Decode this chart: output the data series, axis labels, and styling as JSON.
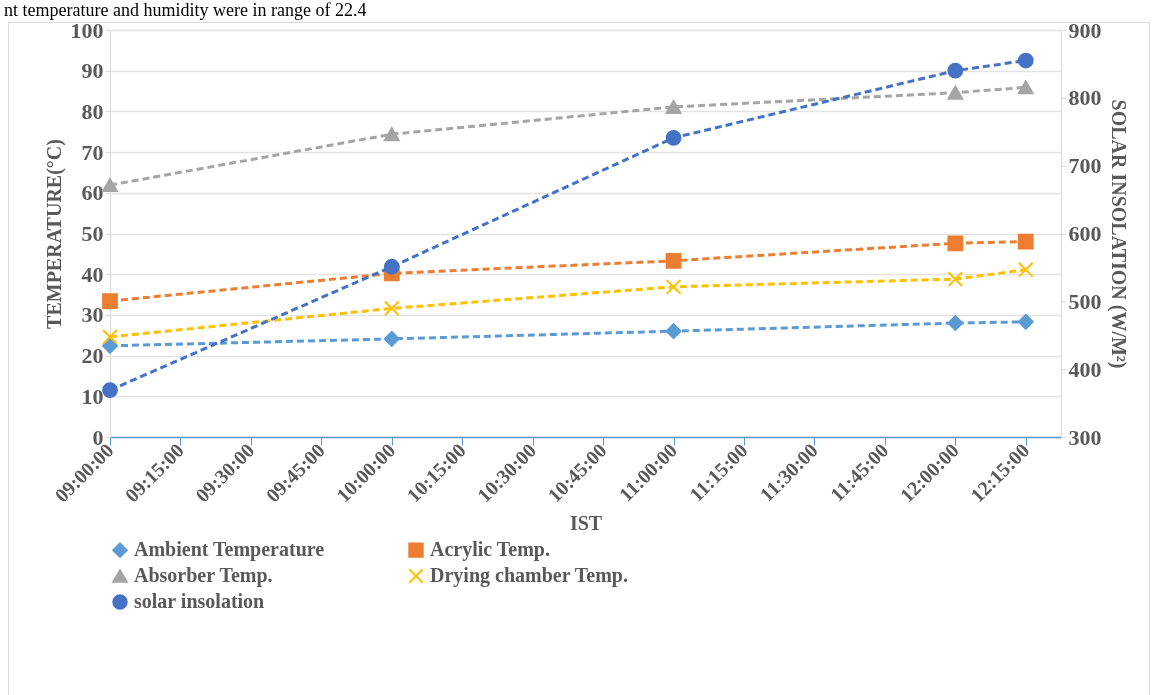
{
  "chart_data": {
    "type": "line",
    "xlabel": "IST",
    "ylabel": "TEMPERATURE(°C)",
    "y2label": "SOLAR INSOLATION (W/M²)",
    "annotations": [
      "nt temperature and humidity were in range of 22.4"
    ],
    "x": [
      9,
      10,
      11,
      12,
      12.25
    ],
    "xlim": [
      9,
      12.375
    ],
    "xticks": [
      {
        "value": 9,
        "label": "09:00:00"
      },
      {
        "value": 9.25,
        "label": "09:15:00"
      },
      {
        "value": 9.5,
        "label": "09:30:00"
      },
      {
        "value": 9.75,
        "label": "09:45:00"
      },
      {
        "value": 10,
        "label": "10:00:00"
      },
      {
        "value": 10.25,
        "label": "10:15:00"
      },
      {
        "value": 10.5,
        "label": "10:30:00"
      },
      {
        "value": 10.75,
        "label": "10:45:00"
      },
      {
        "value": 11,
        "label": "11:00:00"
      },
      {
        "value": 11.25,
        "label": "11:15:00"
      },
      {
        "value": 11.5,
        "label": "11:30:00"
      },
      {
        "value": 11.75,
        "label": "11:45:00"
      },
      {
        "value": 12,
        "label": "12:00:00"
      },
      {
        "value": 12.25,
        "label": "12:15:00"
      }
    ],
    "ylim": [
      0,
      100
    ],
    "yticks": [
      0,
      10,
      20,
      30,
      40,
      50,
      60,
      70,
      80,
      90,
      100
    ],
    "y2lim": [
      300,
      900
    ],
    "y2ticks": [
      300,
      400,
      500,
      600,
      700,
      800,
      900
    ],
    "grid": "y",
    "legend": "bottom",
    "line_style": "dashed",
    "series": [
      {
        "name": "Ambient Temperature",
        "color": "#5b9bd5",
        "marker": "diamond",
        "values": [
          22.4,
          24.1,
          26.0,
          28.0,
          28.3
        ]
      },
      {
        "name": "Acrylic Temp.",
        "color": "#ed7d31",
        "marker": "square",
        "values": [
          33.4,
          40.2,
          43.3,
          47.6,
          48.0
        ]
      },
      {
        "name": "Absorber Temp.",
        "color": "#a5a5a5",
        "marker": "triangle",
        "values": [
          61.9,
          74.4,
          81.1,
          84.6,
          85.9
        ]
      },
      {
        "name": "Drying chamber Temp.",
        "color": "#ffc000",
        "marker": "cross",
        "values": [
          24.6,
          31.6,
          36.9,
          38.8,
          41.1
        ]
      },
      {
        "name": "solar insolation",
        "color": "#4472c4",
        "marker": "circle",
        "axis": "y2",
        "values": [
          369,
          551,
          741,
          840,
          855
        ]
      }
    ]
  }
}
